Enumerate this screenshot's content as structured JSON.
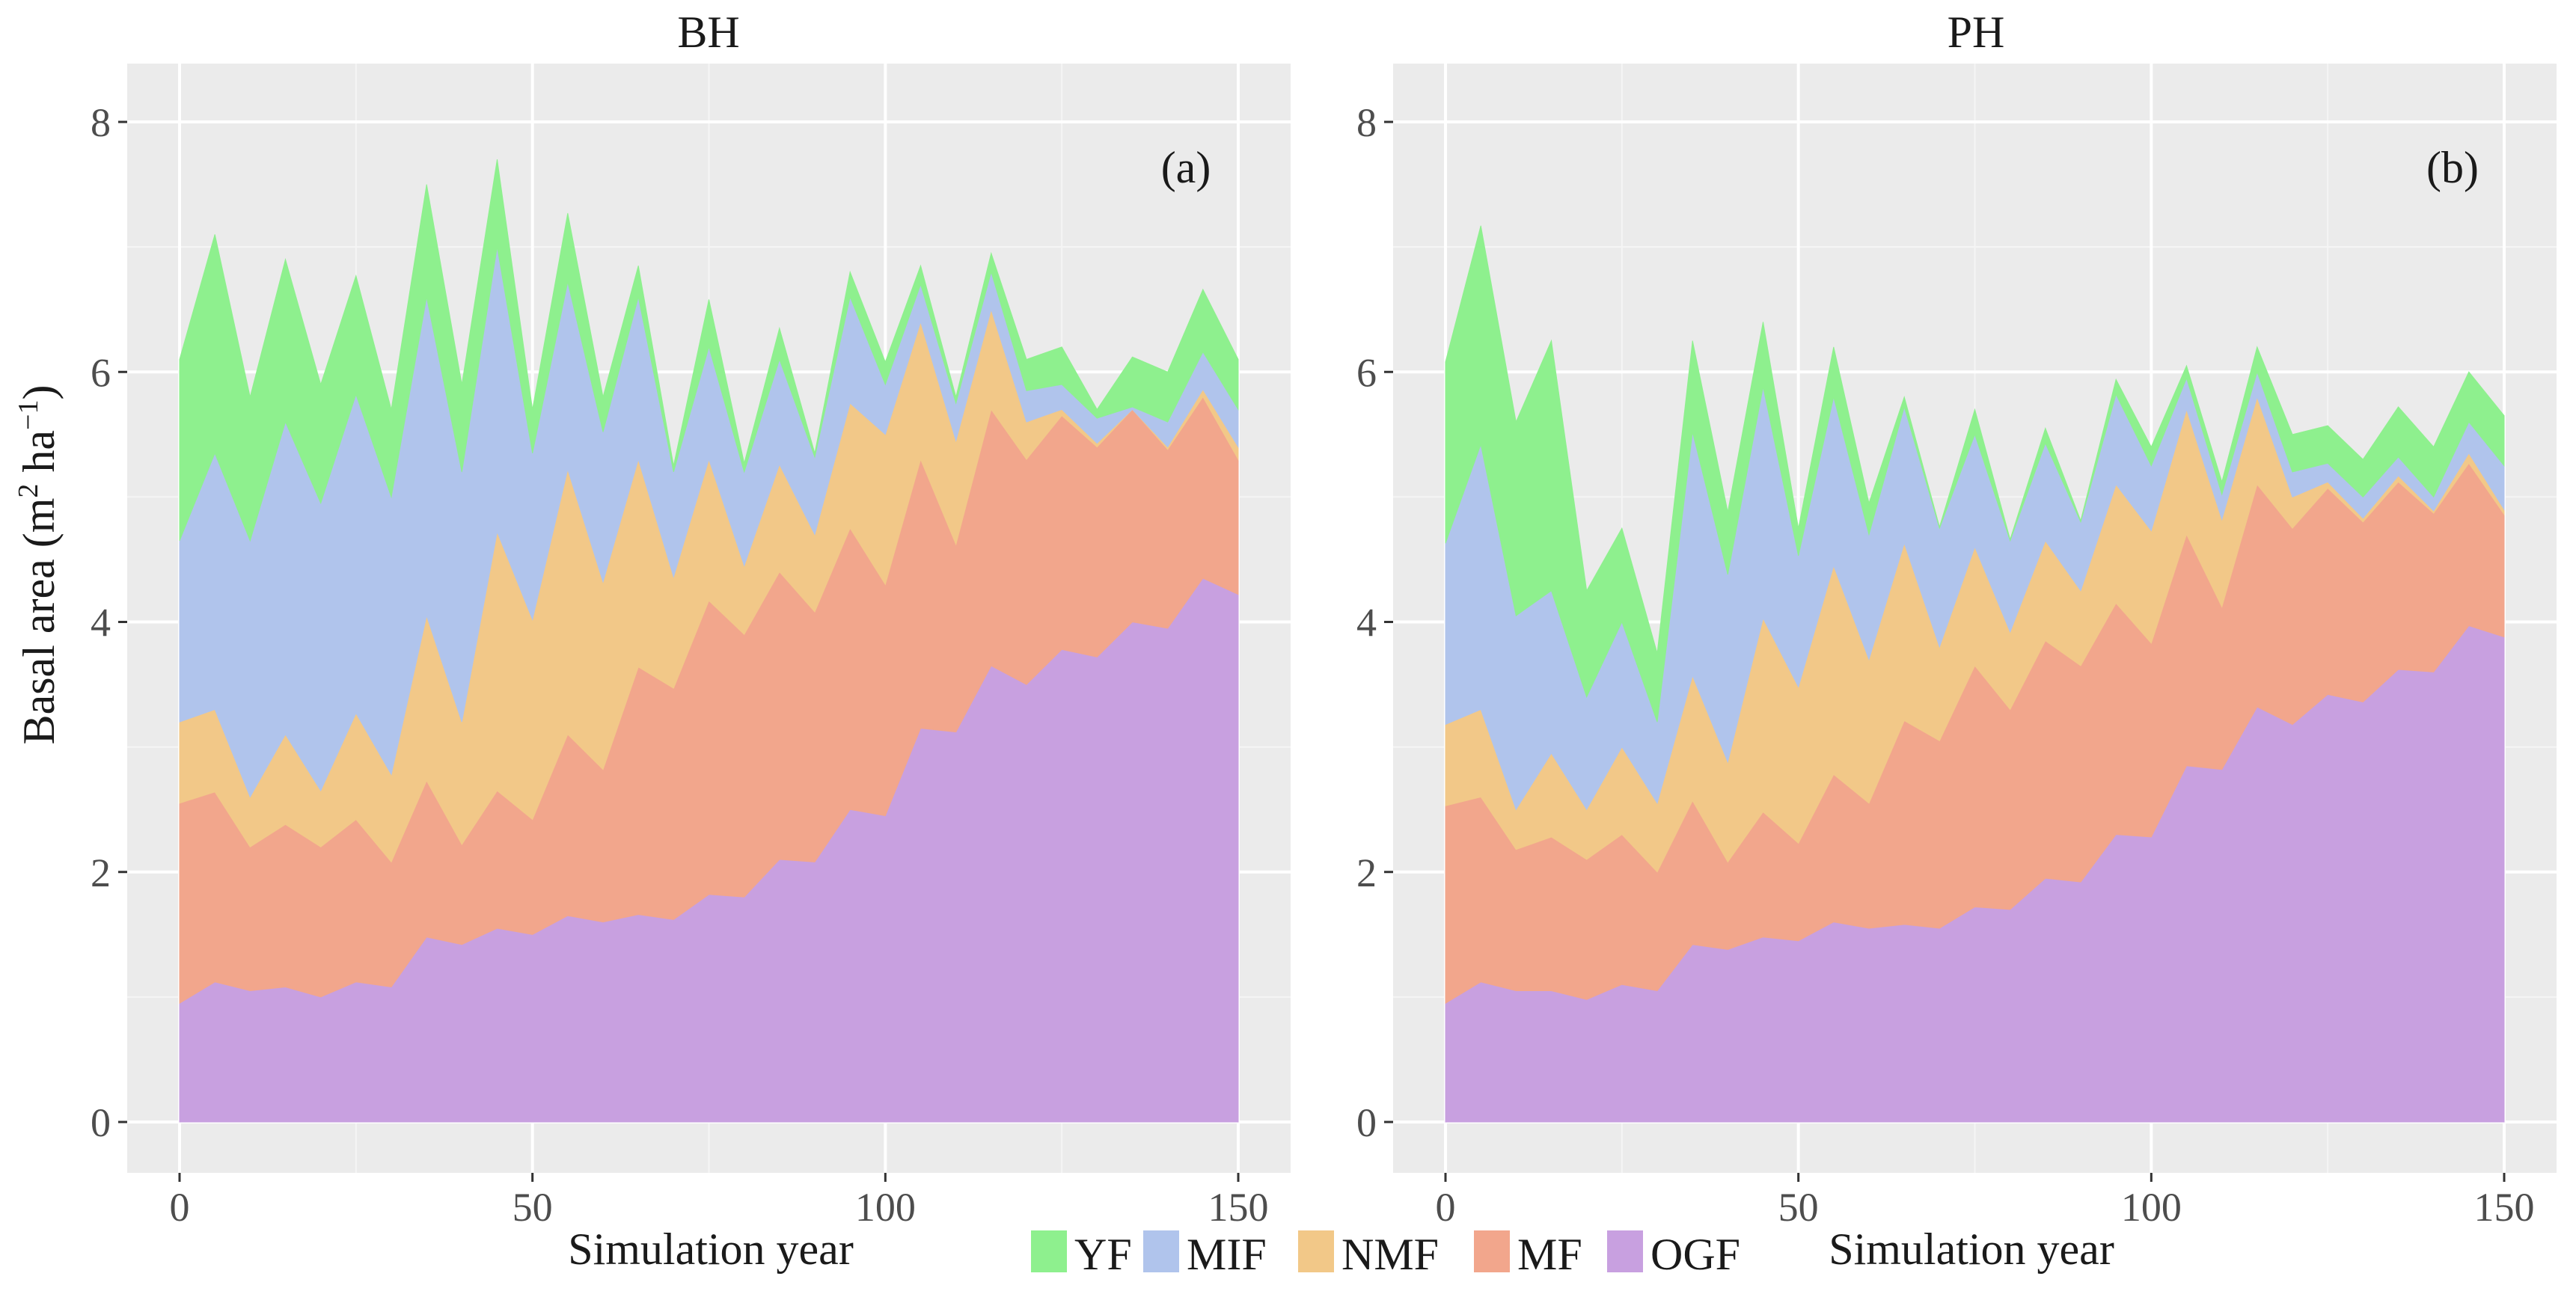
{
  "chart_data": {
    "type": "area",
    "stacked": true,
    "ylabel": "Basal area (m² ha⁻¹)",
    "ylabel_main": "Basal area (m",
    "ylabel_sup2": "2",
    "ylabel_mid": " ha",
    "ylabel_supm1": "−1",
    "ylabel_end": ")",
    "xlim": [
      0,
      150
    ],
    "ylim": [
      0,
      8
    ],
    "x_ticks": [
      0,
      50,
      100,
      150
    ],
    "x_tick_labels": [
      "0",
      "50",
      "100",
      "150"
    ],
    "y_ticks": [
      0,
      2,
      4,
      6,
      8
    ],
    "y_tick_labels": [
      "0",
      "2",
      "4",
      "6",
      "8"
    ],
    "grid": true,
    "legend": {
      "position": "bottom",
      "entries": [
        {
          "name": "YF",
          "color": "#8EF08E"
        },
        {
          "name": "MIF",
          "color": "#B0C4EC"
        },
        {
          "name": "NMF",
          "color": "#F2C888"
        },
        {
          "name": "MF",
          "color": "#F2A68C"
        },
        {
          "name": "OGF",
          "color": "#C8A0E0"
        }
      ]
    },
    "x": [
      0,
      5,
      10,
      15,
      20,
      25,
      30,
      35,
      40,
      45,
      50,
      55,
      60,
      65,
      70,
      75,
      80,
      85,
      90,
      95,
      100,
      105,
      110,
      115,
      120,
      125,
      130,
      135,
      140,
      145,
      150
    ],
    "stack_order": [
      "OGF",
      "MF",
      "NMF",
      "MIF",
      "YF"
    ],
    "panels": [
      {
        "title": "BH",
        "tag": "(a)",
        "xlabel": "Simulation year",
        "series": [
          {
            "name": "OGF",
            "values": [
              0.95,
              1.12,
              1.05,
              1.08,
              1.0,
              1.12,
              1.08,
              1.48,
              1.42,
              1.55,
              1.5,
              1.65,
              1.6,
              1.66,
              1.62,
              1.82,
              1.8,
              2.1,
              2.08,
              2.5,
              2.45,
              3.15,
              3.12,
              3.65,
              3.5,
              3.78,
              3.72,
              4.0,
              3.95,
              4.35,
              4.22
            ]
          },
          {
            "name": "MF",
            "values": [
              1.6,
              1.52,
              1.15,
              1.3,
              1.2,
              1.3,
              1.0,
              1.25,
              0.8,
              1.1,
              0.92,
              1.45,
              1.22,
              1.98,
              1.85,
              2.35,
              2.1,
              2.3,
              2.0,
              2.25,
              1.85,
              2.15,
              1.5,
              2.05,
              1.8,
              1.87,
              1.68,
              1.7,
              1.43,
              1.45,
              1.08
            ]
          },
          {
            "name": "NMF",
            "values": [
              0.65,
              0.66,
              0.4,
              0.72,
              0.45,
              0.85,
              0.7,
              1.32,
              0.98,
              2.07,
              1.6,
              2.12,
              1.5,
              1.66,
              0.89,
              1.13,
              0.55,
              0.86,
              0.62,
              1.0,
              1.2,
              1.1,
              0.83,
              0.8,
              0.3,
              0.05,
              0.03,
              0.0,
              0.02,
              0.06,
              0.1
            ]
          },
          {
            "name": "MIF",
            "values": [
              1.45,
              2.05,
              2.05,
              2.5,
              2.3,
              2.55,
              2.22,
              2.55,
              2.0,
              2.28,
              1.33,
              1.5,
              1.2,
              1.3,
              0.84,
              0.9,
              0.75,
              0.84,
              0.62,
              0.85,
              0.4,
              0.3,
              0.3,
              0.3,
              0.25,
              0.2,
              0.2,
              0.02,
              0.2,
              0.3,
              0.3
            ]
          },
          {
            "name": "YF",
            "values": [
              1.45,
              1.75,
              1.15,
              1.3,
              0.95,
              0.95,
              0.7,
              0.9,
              0.7,
              0.7,
              0.35,
              0.55,
              0.28,
              0.25,
              0.05,
              0.38,
              0.07,
              0.25,
              0.03,
              0.2,
              0.18,
              0.15,
              0.05,
              0.15,
              0.25,
              0.3,
              0.07,
              0.4,
              0.4,
              0.5,
              0.4
            ]
          }
        ]
      },
      {
        "title": "PH",
        "tag": "(b)",
        "xlabel": "Simulation year",
        "series": [
          {
            "name": "OGF",
            "values": [
              0.95,
              1.12,
              1.05,
              1.05,
              0.98,
              1.1,
              1.05,
              1.42,
              1.38,
              1.48,
              1.45,
              1.6,
              1.55,
              1.58,
              1.55,
              1.72,
              1.7,
              1.95,
              1.92,
              2.3,
              2.28,
              2.85,
              2.82,
              3.32,
              3.18,
              3.42,
              3.36,
              3.62,
              3.6,
              3.97,
              3.88
            ]
          },
          {
            "name": "MF",
            "values": [
              1.58,
              1.48,
              1.13,
              1.23,
              1.12,
              1.2,
              0.95,
              1.15,
              0.7,
              1.0,
              0.78,
              1.18,
              1.0,
              1.63,
              1.5,
              1.93,
              1.6,
              1.9,
              1.73,
              1.85,
              1.55,
              1.85,
              1.3,
              1.78,
              1.57,
              1.65,
              1.44,
              1.5,
              1.27,
              1.3,
              0.98
            ]
          },
          {
            "name": "NMF",
            "values": [
              0.65,
              0.7,
              0.32,
              0.67,
              0.4,
              0.7,
              0.55,
              1.0,
              0.8,
              1.55,
              1.25,
              1.67,
              1.15,
              1.42,
              0.75,
              0.95,
              0.62,
              0.8,
              0.6,
              0.95,
              0.9,
              1.0,
              0.7,
              0.7,
              0.25,
              0.05,
              0.03,
              0.05,
              0.02,
              0.08,
              0.04
            ]
          },
          {
            "name": "MIF",
            "values": [
              1.45,
              2.12,
              1.55,
              1.3,
              0.9,
              1.0,
              0.65,
              1.95,
              1.5,
              1.85,
              1.05,
              1.35,
              1.0,
              1.09,
              0.95,
              0.9,
              0.73,
              0.78,
              0.55,
              0.72,
              0.52,
              0.25,
              0.2,
              0.2,
              0.2,
              0.15,
              0.17,
              0.15,
              0.11,
              0.25,
              0.35
            ]
          },
          {
            "name": "YF",
            "values": [
              1.45,
              1.75,
              1.55,
              2.0,
              0.85,
              0.75,
              0.55,
              0.73,
              0.5,
              0.52,
              0.22,
              0.4,
              0.25,
              0.08,
              0.01,
              0.2,
              0.01,
              0.12,
              0.01,
              0.12,
              0.15,
              0.1,
              0.1,
              0.2,
              0.3,
              0.3,
              0.3,
              0.4,
              0.4,
              0.4,
              0.4
            ]
          }
        ]
      }
    ]
  }
}
